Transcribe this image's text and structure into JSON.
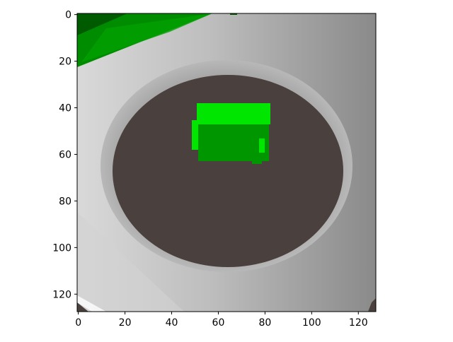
{
  "image": {
    "type": "image-plot",
    "description_kind": "rendered camera view of a green block on a dark circular pad",
    "x_ticks": [
      "0",
      "20",
      "40",
      "60",
      "80",
      "100",
      "120"
    ],
    "y_ticks": [
      "0",
      "20",
      "40",
      "60",
      "80",
      "100",
      "120"
    ],
    "xlim": [
      0,
      128
    ],
    "ylim": [
      128,
      0
    ],
    "colors": {
      "background_light": "#d8d8d8",
      "background_dark": "#8c8c8c",
      "disc": "#4a403d",
      "ring": "#9e9e9e",
      "block_dark": "#009600",
      "block_light": "#00e600",
      "stripe_dark": "#005a00",
      "stripe_mid": "#008c00"
    }
  }
}
